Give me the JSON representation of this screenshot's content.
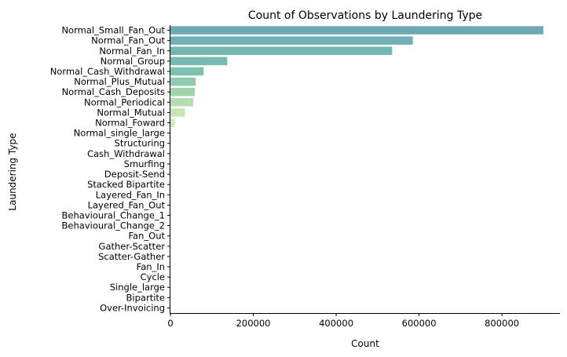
{
  "chart_data": {
    "type": "bar",
    "orientation": "horizontal",
    "title": "Count of Observations by Laundering Type",
    "xlabel": "Count",
    "ylabel": "Laundering Type",
    "xlim": [
      0,
      940000
    ],
    "xticks": [
      0,
      200000,
      400000,
      600000,
      800000
    ],
    "xtick_labels": [
      "0",
      "200000",
      "400000",
      "600000",
      "800000"
    ],
    "grid": false,
    "legend": "none",
    "palette_colors": [
      "#6ea9b4",
      "#71b0b3",
      "#74b6b2",
      "#77bbb0",
      "#7cc1ad",
      "#8fcbab",
      "#a1d4ab",
      "#b6ddaf",
      "#c6e4b4",
      "#d2e9b9",
      "#dcefbf"
    ],
    "categories": [
      "Normal_Small_Fan_Out",
      "Normal_Fan_Out",
      "Normal_Fan_In",
      "Normal_Group",
      "Normal_Cash_Withdrawal",
      "Normal_Plus_Mutual",
      "Normal_Cash_Deposits",
      "Normal_Periodical",
      "Normal_Mutual",
      "Normal_Foward",
      "Normal_single_large",
      "Structuring",
      "Cash_Withdrawal",
      "Smurfing",
      "Deposit-Send",
      "Stacked Bipartite",
      "Layered_Fan_In",
      "Layered_Fan_Out",
      "Behavioural_Change_1",
      "Behavioural_Change_2",
      "Fan_Out",
      "Gather-Scatter",
      "Scatter-Gather",
      "Fan_In",
      "Cycle",
      "Single_large",
      "Bipartite",
      "Over-Invoicing"
    ],
    "values": [
      900000,
      585000,
      535000,
      137000,
      80000,
      61000,
      59000,
      55000,
      35000,
      11000,
      3000,
      1500,
      1200,
      1000,
      800,
      700,
      600,
      550,
      500,
      450,
      400,
      350,
      300,
      250,
      200,
      150,
      100,
      50
    ]
  }
}
